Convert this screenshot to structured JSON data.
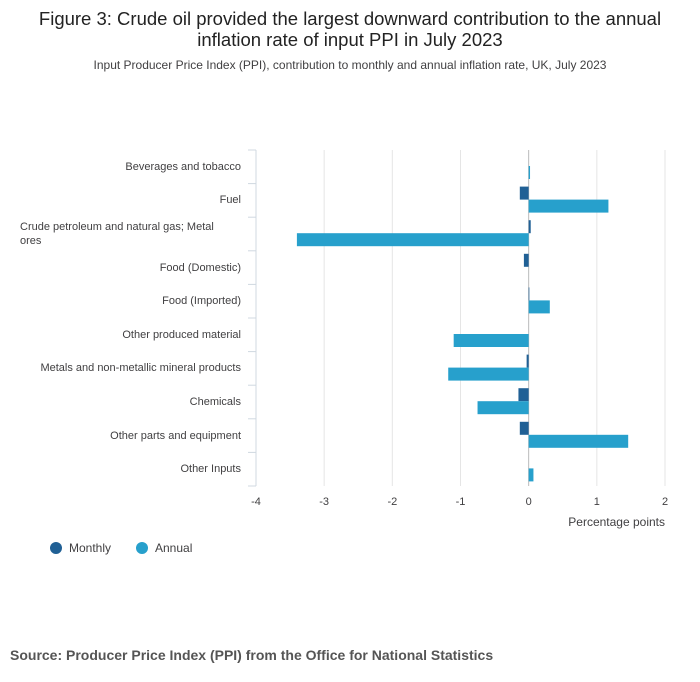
{
  "chart_data": {
    "type": "bar",
    "orientation": "horizontal",
    "title": "Figure 3: Crude oil provided the largest downward contribution to the annual inflation rate of input PPI in July 2023",
    "subtitle": "Input Producer Price Index (PPI), contribution to monthly and annual inflation rate, UK, July 2023",
    "xlabel": "Percentage points",
    "xlim": [
      -4,
      2
    ],
    "xticks": [
      -4,
      -3,
      -2,
      -1,
      0,
      1,
      2
    ],
    "categories": [
      "Beverages and tobacco",
      "Fuel",
      "Crude petroleum and natural gas; Metal ores",
      "Food (Domestic)",
      "Food (Imported)",
      "Other produced material",
      "Metals and non-metallic mineral products",
      "Chemicals",
      "Other parts and equipment",
      "Other Inputs"
    ],
    "series": [
      {
        "name": "Monthly",
        "color": "#206095",
        "values": [
          0.0,
          -0.13,
          0.03,
          -0.07,
          0.01,
          0.0,
          -0.03,
          -0.15,
          -0.13,
          0.0
        ]
      },
      {
        "name": "Annual",
        "color": "#27a0cc",
        "values": [
          0.02,
          1.17,
          -3.4,
          0.0,
          0.31,
          -1.1,
          -1.18,
          -0.75,
          1.46,
          0.07
        ]
      }
    ],
    "legend_position": "bottom-left"
  },
  "source": "Source: Producer Price Index (PPI) from the Office for National Statistics"
}
